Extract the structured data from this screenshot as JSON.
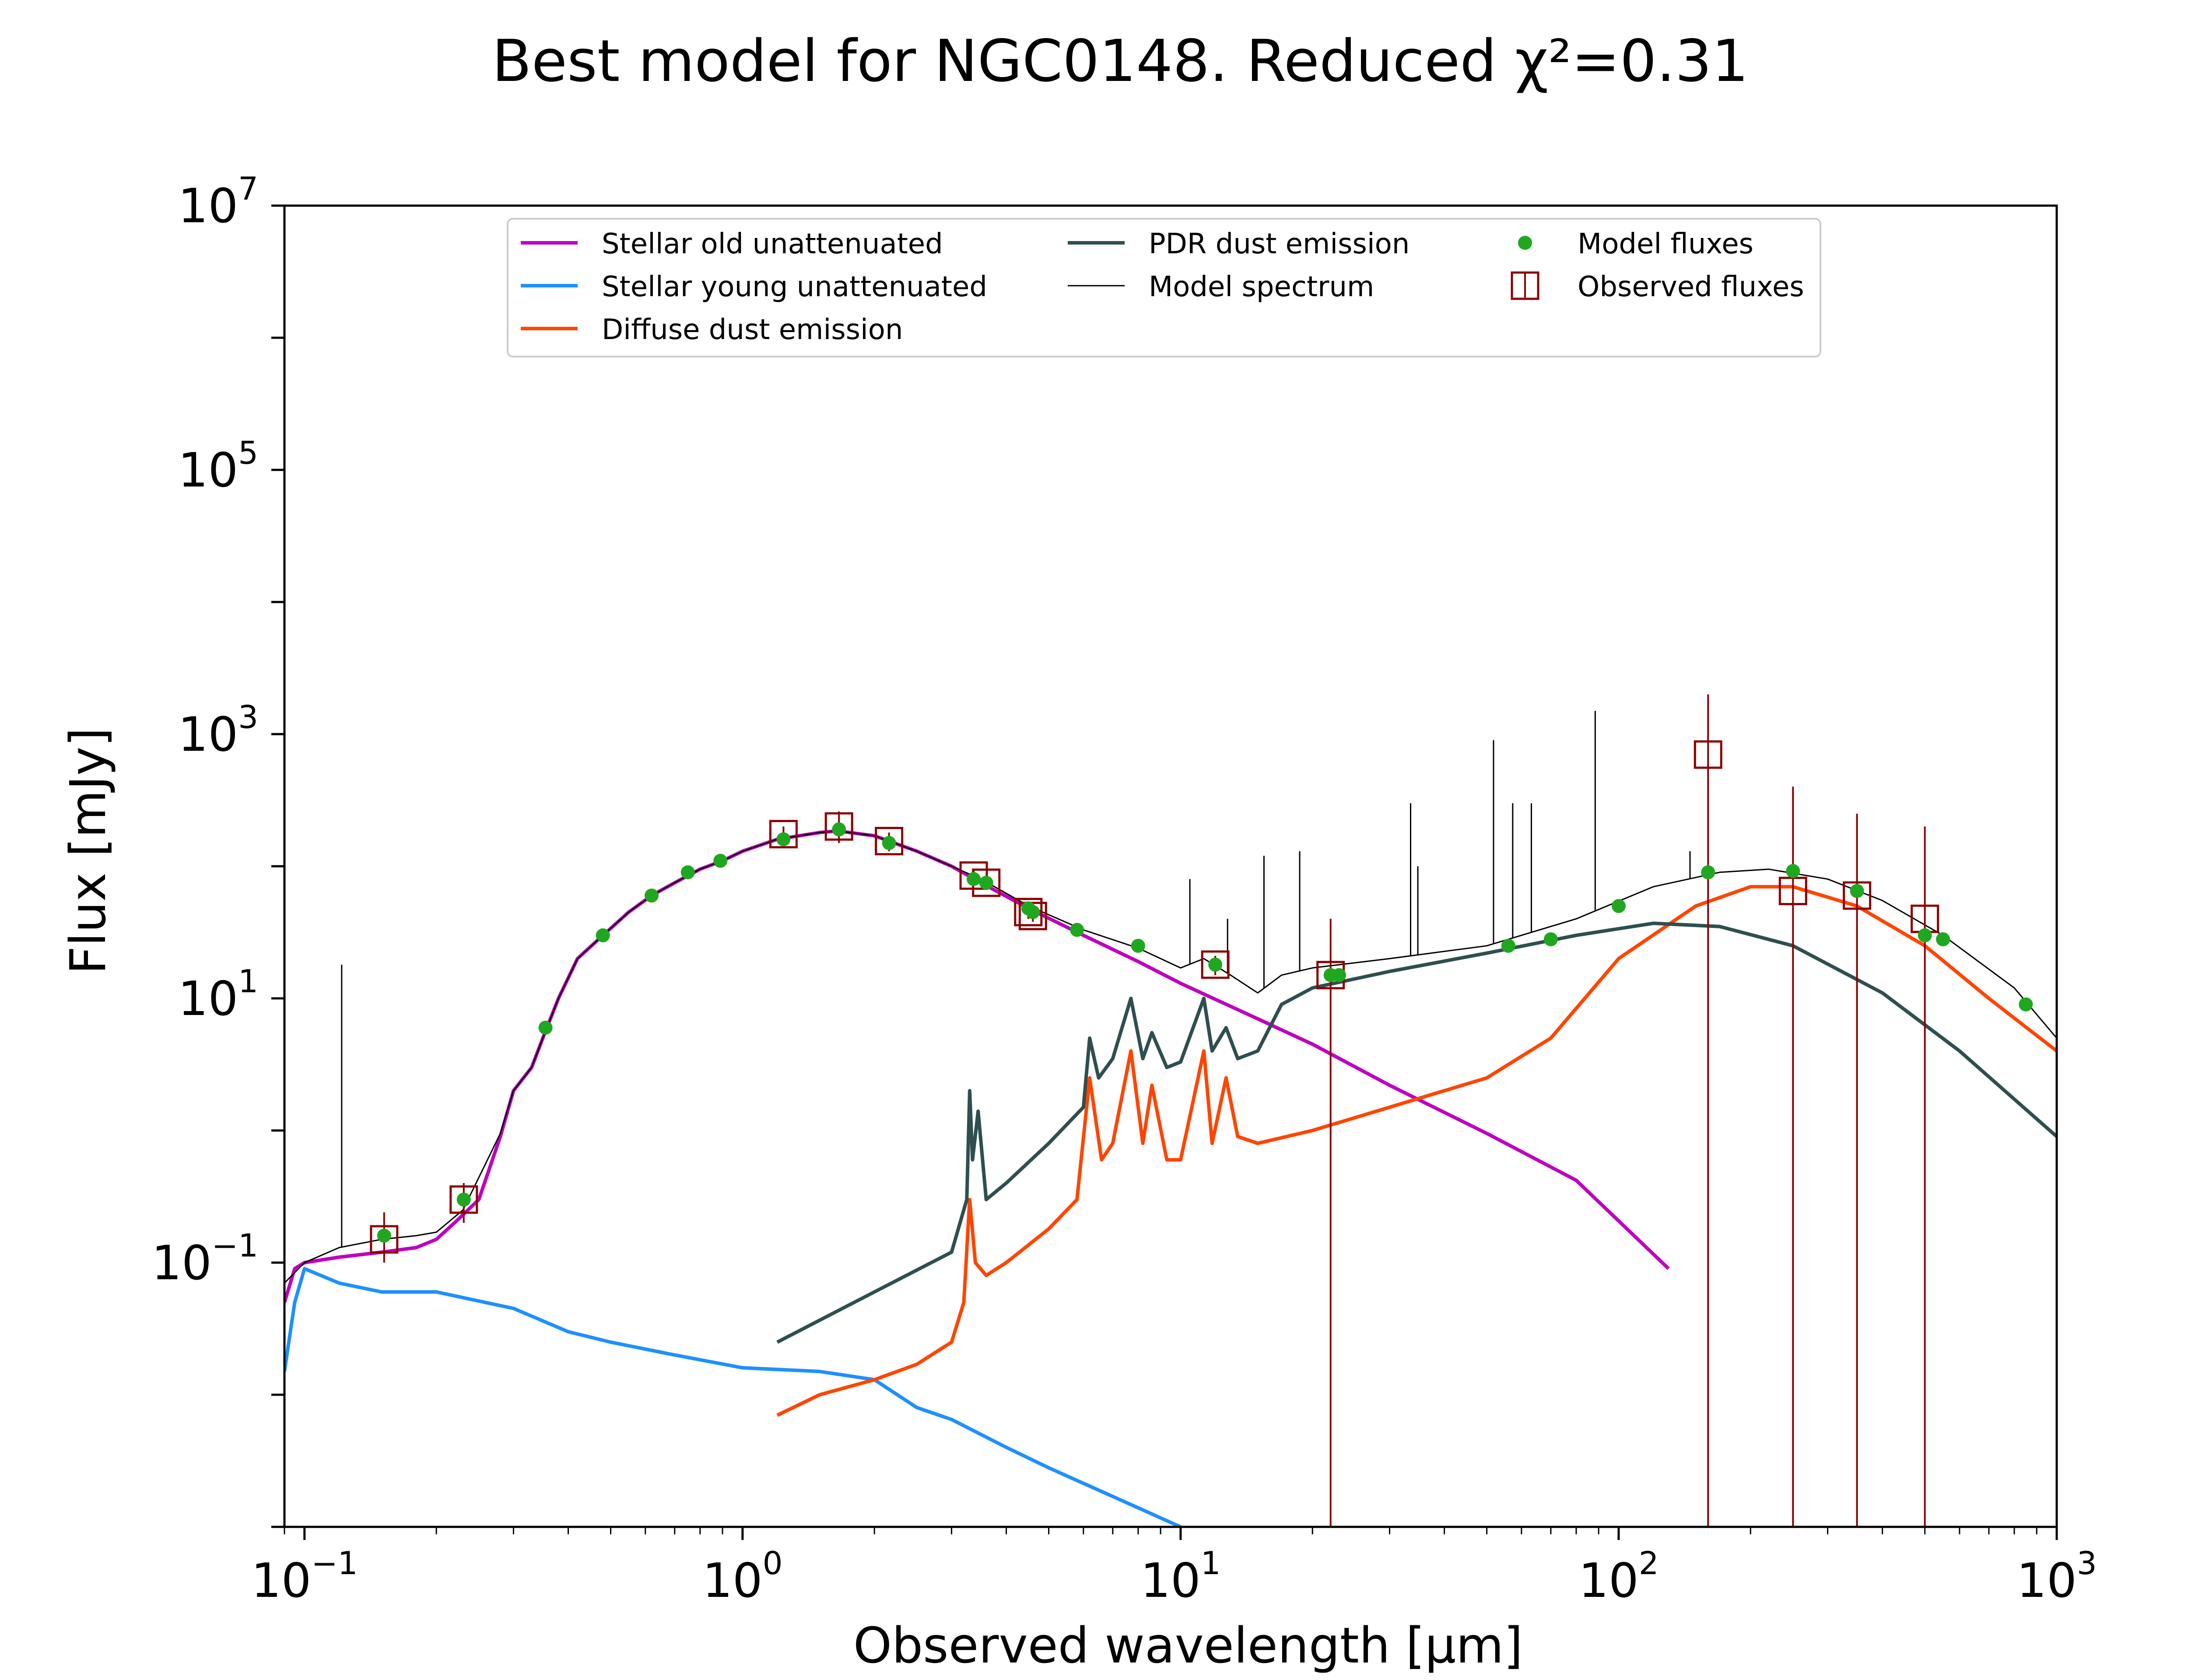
{
  "chart_data": {
    "type": "line",
    "title": "Best model for NGC0148. Reduced χ²=0.31",
    "xlabel": "Observed wavelength [μm]",
    "ylabel": "Flux [mJy]",
    "xscale": "log",
    "yscale": "log",
    "xlim": [
      0.09,
      1000
    ],
    "ylim": [
      0.001,
      10000000
    ],
    "x_ticks": [
      {
        "base": "10",
        "exp": "−1",
        "value": 0.1
      },
      {
        "base": "10",
        "exp": "0",
        "value": 1
      },
      {
        "base": "10",
        "exp": "1",
        "value": 10
      },
      {
        "base": "10",
        "exp": "2",
        "value": 100
      },
      {
        "base": "10",
        "exp": "3",
        "value": 1000
      }
    ],
    "y_ticks": [
      {
        "base": "10",
        "exp": "−1",
        "value": 0.1
      },
      {
        "base": "10",
        "exp": "1",
        "value": 10
      },
      {
        "base": "10",
        "exp": "3",
        "value": 1000
      },
      {
        "base": "10",
        "exp": "5",
        "value": 100000
      },
      {
        "base": "10",
        "exp": "7",
        "value": 10000000
      }
    ],
    "legend_position": "top-center",
    "grid": false,
    "legend": [
      {
        "label": "Stellar old unattenuated",
        "kind": "line",
        "color": "#bf00bf"
      },
      {
        "label": "Stellar young unattenuated",
        "kind": "line",
        "color": "#1e90ff"
      },
      {
        "label": "Diffuse dust emission",
        "kind": "line",
        "color": "#ff4500"
      },
      {
        "label": "PDR dust emission",
        "kind": "line",
        "color": "#2f4f4f"
      },
      {
        "label": "Model spectrum",
        "kind": "thinline",
        "color": "#000000"
      },
      {
        "label": "Model fluxes",
        "kind": "dot",
        "color": "#1fa81f"
      },
      {
        "label": "Observed fluxes",
        "kind": "square",
        "color": "#8b0000"
      }
    ],
    "series": [
      {
        "name": "Stellar old unattenuated",
        "color": "#bf00bf",
        "points": [
          [
            0.09,
            0.05
          ],
          [
            0.095,
            0.09
          ],
          [
            0.1,
            0.1
          ],
          [
            0.12,
            0.11
          ],
          [
            0.15,
            0.12
          ],
          [
            0.18,
            0.13
          ],
          [
            0.2,
            0.15
          ],
          [
            0.22,
            0.2
          ],
          [
            0.25,
            0.3
          ],
          [
            0.28,
            0.9
          ],
          [
            0.3,
            2
          ],
          [
            0.33,
            3
          ],
          [
            0.35,
            5
          ],
          [
            0.38,
            10
          ],
          [
            0.42,
            20
          ],
          [
            0.48,
            30
          ],
          [
            0.55,
            45
          ],
          [
            0.62,
            60
          ],
          [
            0.7,
            75
          ],
          [
            0.8,
            95
          ],
          [
            0.9,
            110
          ],
          [
            1.0,
            130
          ],
          [
            1.2,
            160
          ],
          [
            1.5,
            180
          ],
          [
            1.65,
            185
          ],
          [
            2.0,
            170
          ],
          [
            2.5,
            130
          ],
          [
            3.0,
            100
          ],
          [
            3.5,
            75
          ],
          [
            4.5,
            48
          ],
          [
            6,
            30
          ],
          [
            8,
            19
          ],
          [
            10,
            13
          ],
          [
            15,
            7
          ],
          [
            20,
            4.5
          ],
          [
            30,
            2.2
          ],
          [
            50,
            0.95
          ],
          [
            80,
            0.42
          ],
          [
            130,
            0.09
          ]
        ]
      },
      {
        "name": "Stellar young unattenuated",
        "color": "#1e90ff",
        "points": [
          [
            0.09,
            0.015
          ],
          [
            0.095,
            0.05
          ],
          [
            0.1,
            0.09
          ],
          [
            0.12,
            0.07
          ],
          [
            0.15,
            0.06
          ],
          [
            0.2,
            0.06
          ],
          [
            0.3,
            0.045
          ],
          [
            0.4,
            0.03
          ],
          [
            0.5,
            0.025
          ],
          [
            0.7,
            0.02
          ],
          [
            1.0,
            0.016
          ],
          [
            1.5,
            0.015
          ],
          [
            2.0,
            0.013
          ],
          [
            2.5,
            0.008
          ],
          [
            3,
            0.0065
          ],
          [
            4,
            0.004
          ],
          [
            5,
            0.0028
          ],
          [
            7,
            0.0017
          ],
          [
            10,
            0.001
          ]
        ]
      },
      {
        "name": "Diffuse dust emission",
        "color": "#ff4500",
        "points": [
          [
            1.2,
            0.007
          ],
          [
            1.5,
            0.01
          ],
          [
            2,
            0.013
          ],
          [
            2.5,
            0.017
          ],
          [
            3.0,
            0.025
          ],
          [
            3.2,
            0.05
          ],
          [
            3.3,
            0.3
          ],
          [
            3.4,
            0.1
          ],
          [
            3.6,
            0.08
          ],
          [
            4,
            0.1
          ],
          [
            5,
            0.18
          ],
          [
            5.8,
            0.3
          ],
          [
            6.2,
            2.5
          ],
          [
            6.6,
            0.6
          ],
          [
            7.0,
            0.8
          ],
          [
            7.7,
            4
          ],
          [
            8.2,
            0.8
          ],
          [
            8.6,
            2.2
          ],
          [
            9.3,
            0.6
          ],
          [
            10,
            0.6
          ],
          [
            11.3,
            4
          ],
          [
            11.8,
            0.8
          ],
          [
            12.7,
            2.5
          ],
          [
            13.5,
            0.9
          ],
          [
            15,
            0.8
          ],
          [
            20,
            1
          ],
          [
            30,
            1.5
          ],
          [
            50,
            2.5
          ],
          [
            70,
            5
          ],
          [
            100,
            20
          ],
          [
            150,
            50
          ],
          [
            200,
            70
          ],
          [
            250,
            70
          ],
          [
            350,
            50
          ],
          [
            500,
            25
          ],
          [
            700,
            10
          ],
          [
            1000,
            4
          ]
        ]
      },
      {
        "name": "PDR dust emission",
        "color": "#2f4f4f",
        "points": [
          [
            1.2,
            0.025
          ],
          [
            2,
            0.06
          ],
          [
            3.0,
            0.12
          ],
          [
            3.25,
            0.3
          ],
          [
            3.3,
            2
          ],
          [
            3.35,
            0.6
          ],
          [
            3.45,
            1.4
          ],
          [
            3.6,
            0.3
          ],
          [
            4,
            0.4
          ],
          [
            5,
            0.8
          ],
          [
            6,
            1.5
          ],
          [
            6.2,
            5
          ],
          [
            6.5,
            2.5
          ],
          [
            7,
            3.5
          ],
          [
            7.7,
            10
          ],
          [
            8.2,
            3.5
          ],
          [
            8.6,
            5.5
          ],
          [
            9.3,
            3
          ],
          [
            10,
            3.3
          ],
          [
            11.3,
            10
          ],
          [
            11.8,
            4
          ],
          [
            12.7,
            6
          ],
          [
            13.5,
            3.5
          ],
          [
            15,
            4
          ],
          [
            17,
            9
          ],
          [
            20,
            12
          ],
          [
            30,
            16
          ],
          [
            50,
            22
          ],
          [
            80,
            30
          ],
          [
            120,
            37
          ],
          [
            170,
            35
          ],
          [
            250,
            25
          ],
          [
            400,
            11
          ],
          [
            600,
            4
          ],
          [
            1000,
            0.9
          ]
        ]
      },
      {
        "name": "Model spectrum",
        "color": "#000000",
        "points": [
          [
            0.09,
            0.07
          ],
          [
            0.1,
            0.1
          ],
          [
            0.12,
            0.13
          ],
          [
            0.15,
            0.15
          ],
          [
            0.18,
            0.16
          ],
          [
            0.2,
            0.17
          ],
          [
            0.23,
            0.25
          ],
          [
            0.28,
            0.95
          ],
          [
            0.3,
            2
          ],
          [
            0.33,
            3
          ],
          [
            0.35,
            5
          ],
          [
            0.38,
            10
          ],
          [
            0.42,
            20
          ],
          [
            0.48,
            30
          ],
          [
            0.55,
            45
          ],
          [
            0.62,
            60
          ],
          [
            0.7,
            75
          ],
          [
            0.8,
            95
          ],
          [
            0.9,
            110
          ],
          [
            1.0,
            130
          ],
          [
            1.2,
            160
          ],
          [
            1.5,
            180
          ],
          [
            1.65,
            185
          ],
          [
            2.0,
            170
          ],
          [
            2.5,
            130
          ],
          [
            3.0,
            100
          ],
          [
            3.5,
            80
          ],
          [
            4.5,
            50
          ],
          [
            6,
            33
          ],
          [
            8,
            24
          ],
          [
            10,
            17
          ],
          [
            11.3,
            20
          ],
          [
            13,
            15
          ],
          [
            15,
            11
          ],
          [
            17,
            15
          ],
          [
            20,
            17
          ],
          [
            30,
            20
          ],
          [
            50,
            25
          ],
          [
            80,
            40
          ],
          [
            120,
            70
          ],
          [
            170,
            90
          ],
          [
            220,
            95
          ],
          [
            300,
            80
          ],
          [
            400,
            55
          ],
          [
            550,
            30
          ],
          [
            800,
            12
          ],
          [
            1000,
            5
          ]
        ]
      }
    ],
    "spectral_lines": [
      [
        0.1216,
        18
      ],
      [
        10.5,
        80
      ],
      [
        12.8,
        40
      ],
      [
        15.5,
        120
      ],
      [
        18.7,
        130
      ],
      [
        33.5,
        300
      ],
      [
        34.8,
        100
      ],
      [
        51.8,
        900
      ],
      [
        57.3,
        300
      ],
      [
        63.2,
        300
      ],
      [
        88.4,
        1500
      ],
      [
        145.5,
        130
      ]
    ],
    "model_fluxes": [
      [
        0.152,
        0.16
      ],
      [
        0.231,
        0.3
      ],
      [
        0.355,
        6
      ],
      [
        0.48,
        30
      ],
      [
        0.62,
        60
      ],
      [
        0.75,
        90
      ],
      [
        0.89,
        110
      ],
      [
        1.24,
        160
      ],
      [
        1.66,
        190
      ],
      [
        2.16,
        150
      ],
      [
        3.37,
        80
      ],
      [
        3.6,
        75
      ],
      [
        4.49,
        48
      ],
      [
        4.6,
        45
      ],
      [
        5.8,
        33
      ],
      [
        8.0,
        25
      ],
      [
        12.0,
        18
      ],
      [
        22,
        15
      ],
      [
        23,
        15
      ],
      [
        56,
        25
      ],
      [
        70,
        28
      ],
      [
        100,
        50
      ],
      [
        160,
        90
      ],
      [
        250,
        92
      ],
      [
        350,
        65
      ],
      [
        500,
        30
      ],
      [
        550,
        28
      ],
      [
        850,
        9
      ]
    ],
    "observed_fluxes": [
      {
        "x": 0.152,
        "y": 0.15,
        "err": [
          0.1,
          0.24
        ]
      },
      {
        "x": 0.231,
        "y": 0.3,
        "err": [
          0.2,
          0.4
        ]
      },
      {
        "x": 1.24,
        "y": 175,
        "err": [
          150,
          200
        ]
      },
      {
        "x": 1.66,
        "y": 200,
        "err": [
          150,
          260
        ]
      },
      {
        "x": 2.16,
        "y": 155,
        "err": [
          130,
          180
        ]
      },
      {
        "x": 3.37,
        "y": 85,
        "err": [
          75,
          95
        ]
      },
      {
        "x": 3.6,
        "y": 75,
        "err": [
          68,
          83
        ]
      },
      {
        "x": 4.49,
        "y": 45,
        "err": [
          40,
          50
        ]
      },
      {
        "x": 4.6,
        "y": 42,
        "err": [
          38,
          46
        ]
      },
      {
        "x": 12.0,
        "y": 18,
        "err": [
          15,
          21
        ]
      },
      {
        "x": 22,
        "y": 15,
        "err": [
          0.001,
          40
        ]
      },
      {
        "x": 160,
        "y": 700,
        "err": [
          0.001,
          2000
        ]
      },
      {
        "x": 250,
        "y": 65,
        "err": [
          0.001,
          400
        ]
      },
      {
        "x": 350,
        "y": 60,
        "err": [
          0.001,
          250
        ]
      },
      {
        "x": 500,
        "y": 40,
        "err": [
          0.001,
          200
        ]
      }
    ]
  }
}
